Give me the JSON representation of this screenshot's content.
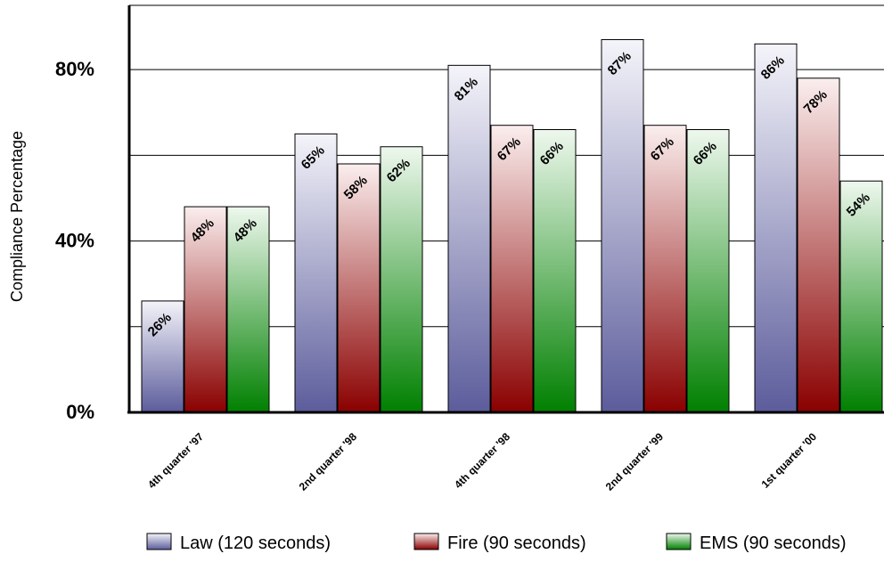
{
  "chart_data": {
    "type": "bar",
    "ylabel": "Compliance Percentage",
    "ylim": [
      0,
      95
    ],
    "yticks": [
      {
        "value": 0,
        "label": "0%"
      },
      {
        "value": 40,
        "label": "40%"
      },
      {
        "value": 80,
        "label": "80%"
      }
    ],
    "gridlines": [
      20,
      40,
      60,
      80,
      95
    ],
    "grid": true,
    "legend_position": "bottom",
    "categories": [
      "4th quarter '97",
      "2nd quarter '98",
      "4th quarter '98",
      "2nd quarter '99",
      "1st quarter '00"
    ],
    "series": [
      {
        "name": "Law (120 seconds)",
        "values": [
          26,
          65,
          81,
          87,
          86
        ],
        "labels": [
          "26%",
          "65%",
          "81%",
          "87%",
          "86%"
        ],
        "color_top": "#f4f4fa",
        "color_bottom": "#5c5c9c"
      },
      {
        "name": "Fire (90 seconds)",
        "values": [
          48,
          58,
          67,
          67,
          78
        ],
        "labels": [
          "48%",
          "58%",
          "67%",
          "67%",
          "78%"
        ],
        "color_top": "#fbeeee",
        "color_bottom": "#8a0000"
      },
      {
        "name": "EMS (90 seconds)",
        "values": [
          48,
          62,
          66,
          66,
          54
        ],
        "labels": [
          "48%",
          "62%",
          "66%",
          "66%",
          "54%"
        ],
        "color_top": "#eef8ee",
        "color_bottom": "#008000"
      }
    ]
  }
}
